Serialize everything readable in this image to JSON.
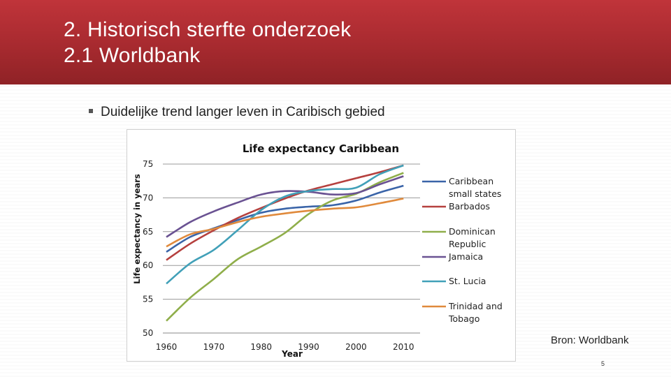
{
  "slide": {
    "title_line1": "2. Historisch sterfte onderzoek",
    "title_line2": "2.1 Worldbank",
    "bullet": "Duidelijke trend langer leven in Caribisch gebied",
    "source": "Bron: Worldbank",
    "page_number": "5",
    "colors": {
      "header": "#b02e33",
      "header_text": "#ffffff"
    }
  },
  "chart_data": {
    "type": "line",
    "title": "Life expectancy Caribbean",
    "xlabel": "Year",
    "ylabel": "Life expectancy in years",
    "xlim": [
      1960,
      2010
    ],
    "ylim": [
      50,
      75
    ],
    "x_ticks": [
      1960,
      1970,
      1980,
      1990,
      2000,
      2010
    ],
    "y_ticks": [
      50,
      55,
      60,
      65,
      70,
      75
    ],
    "grid": "horizontal",
    "legend_position": "right",
    "x": [
      1960,
      1965,
      1970,
      1975,
      1980,
      1985,
      1990,
      1995,
      2000,
      2005,
      2010
    ],
    "series": [
      {
        "name": "Caribbean small states",
        "color": "#3a64a8",
        "values": [
          62.0,
          64.2,
          65.5,
          66.7,
          67.8,
          68.4,
          68.7,
          68.9,
          69.6,
          70.8,
          71.8
        ]
      },
      {
        "name": "Barbados",
        "color": "#b5403e",
        "values": [
          60.8,
          63.2,
          65.2,
          67.0,
          68.5,
          69.9,
          71.1,
          72.0,
          72.9,
          73.8,
          74.8
        ]
      },
      {
        "name": "Dominican Republic",
        "color": "#8fae4a",
        "values": [
          51.8,
          55.2,
          58.0,
          60.9,
          62.8,
          64.8,
          67.6,
          69.6,
          70.6,
          72.3,
          73.7
        ]
      },
      {
        "name": "Jamaica",
        "color": "#6a5292",
        "values": [
          64.2,
          66.4,
          68.0,
          69.3,
          70.5,
          71.0,
          70.9,
          70.5,
          70.7,
          72.0,
          73.2
        ]
      },
      {
        "name": "St. Lucia",
        "color": "#41a0b8",
        "values": [
          57.3,
          60.3,
          62.3,
          65.2,
          68.2,
          70.2,
          71.0,
          71.3,
          71.5,
          73.5,
          74.8
        ]
      },
      {
        "name": "Trinidad and Tobago",
        "color": "#e08a3c",
        "values": [
          62.8,
          64.6,
          65.4,
          66.4,
          67.2,
          67.7,
          68.1,
          68.4,
          68.6,
          69.2,
          69.9
        ]
      }
    ]
  }
}
